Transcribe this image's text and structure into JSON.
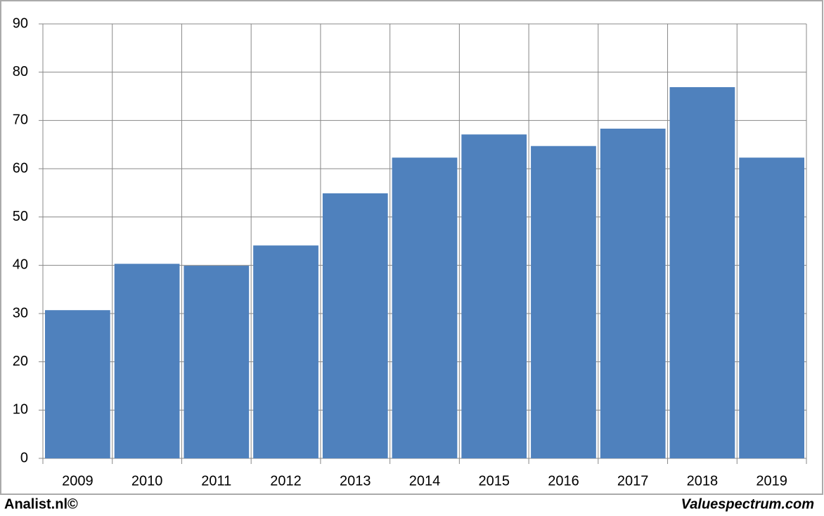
{
  "chart_data": {
    "type": "bar",
    "categories": [
      "2009",
      "2010",
      "2011",
      "2012",
      "2013",
      "2014",
      "2015",
      "2016",
      "2017",
      "2018",
      "2019"
    ],
    "values": [
      30.7,
      40.3,
      39.9,
      44.1,
      54.9,
      62.3,
      67.1,
      64.7,
      68.3,
      76.9,
      62.3
    ],
    "color": "#4f81bd",
    "ylim": [
      0,
      90
    ],
    "yticks": [
      0,
      10,
      20,
      30,
      40,
      50,
      60,
      70,
      80,
      90
    ],
    "grid": true,
    "annotations": [
      "Analist.nl©",
      "Valuespectrum.com"
    ]
  }
}
